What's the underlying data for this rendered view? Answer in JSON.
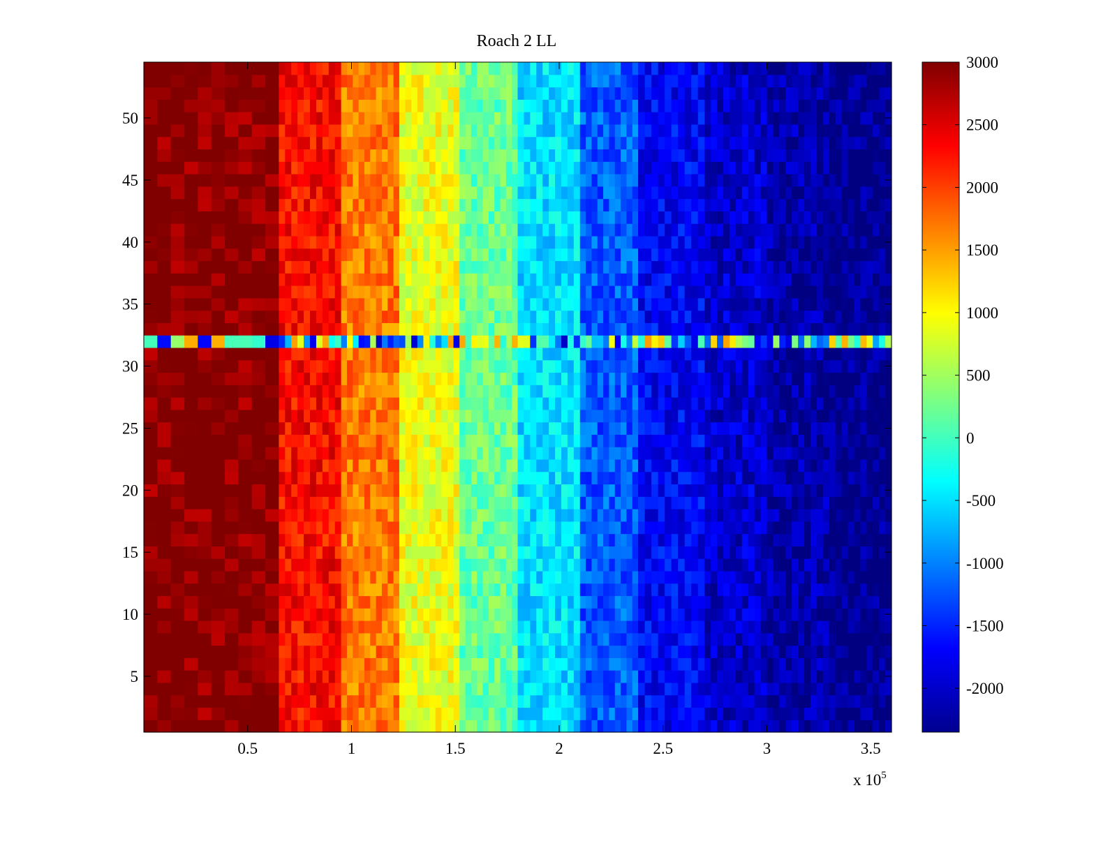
{
  "chart_data": {
    "type": "heatmap",
    "title": "Roach 2 LL",
    "xlabel": "",
    "ylabel": "",
    "x_multiplier_label": "x 10",
    "x_multiplier_exponent": "5",
    "xlim": [
      0,
      360000
    ],
    "ylim": [
      0.5,
      54.5
    ],
    "xticks": [
      0.5,
      1,
      1.5,
      2,
      2.5,
      3,
      3.5
    ],
    "xtick_labels": [
      "0.5",
      "1",
      "1.5",
      "2",
      "2.5",
      "3",
      "3.5"
    ],
    "yticks": [
      5,
      10,
      15,
      20,
      25,
      30,
      35,
      40,
      45,
      50
    ],
    "ytick_labels": [
      "5",
      "10",
      "15",
      "20",
      "25",
      "30",
      "35",
      "40",
      "45",
      "50"
    ],
    "colormap": "jet",
    "color_range": [
      -2350,
      3000
    ],
    "colorbar_ticks": [
      3000,
      2500,
      2000,
      1500,
      1000,
      500,
      0,
      -500,
      -1000,
      -1500,
      -2000
    ],
    "colorbar_tick_labels": [
      "3000",
      "2500",
      "2000",
      "1500",
      "1000",
      "500",
      "0",
      "-500",
      "-1000",
      "-1500",
      "-2000"
    ],
    "rows": 54,
    "column_band_edges_x": [
      0,
      65000,
      95000,
      123000,
      152000,
      180000,
      210000,
      238000,
      270000,
      300000,
      330000,
      360000
    ],
    "column_band_values": [
      3000,
      2300,
      1700,
      900,
      200,
      -500,
      -1200,
      -1700,
      -1950,
      -2150,
      -2300
    ],
    "anomalous_row": {
      "row": 32,
      "approx_value_range": [
        -2000,
        1500
      ]
    },
    "grid": false,
    "legend": "colorbar-right"
  }
}
